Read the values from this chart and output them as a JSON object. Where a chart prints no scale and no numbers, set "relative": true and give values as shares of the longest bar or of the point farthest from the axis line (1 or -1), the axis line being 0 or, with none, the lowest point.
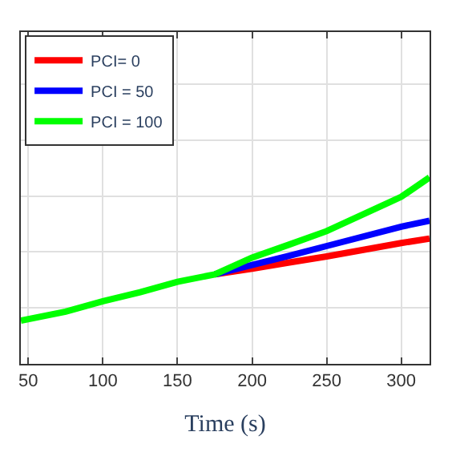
{
  "chart_data": {
    "type": "line",
    "relative": true,
    "xlabel": "Time (s)",
    "xlim": [
      45,
      319
    ],
    "xticks": [
      50,
      100,
      150,
      200,
      250,
      300
    ],
    "grid": true,
    "legend": "top left",
    "line_style": "solid",
    "marker": "none",
    "series": [
      {
        "name": "PCI= 0",
        "color": "#ff0000",
        "x": [
          175,
          200,
          225,
          250,
          300,
          319
        ],
        "values": [
          0.48,
          0.51,
          0.544,
          0.576,
          0.648,
          0.672
        ]
      },
      {
        "name": "PCI = 50",
        "color": "#0000ff",
        "x": [
          175,
          200,
          225,
          250,
          300,
          319
        ],
        "values": [
          0.48,
          0.53,
          0.58,
          0.632,
          0.736,
          0.768
        ]
      },
      {
        "name": "PCI = 100",
        "color": "#00ff00",
        "x": [
          45,
          75,
          100,
          125,
          150,
          175,
          200,
          225,
          250,
          300,
          319
        ],
        "values": [
          0.232,
          0.28,
          0.336,
          0.384,
          0.44,
          0.48,
          0.57,
          0.64,
          0.712,
          0.896,
          1.0
        ]
      }
    ]
  }
}
